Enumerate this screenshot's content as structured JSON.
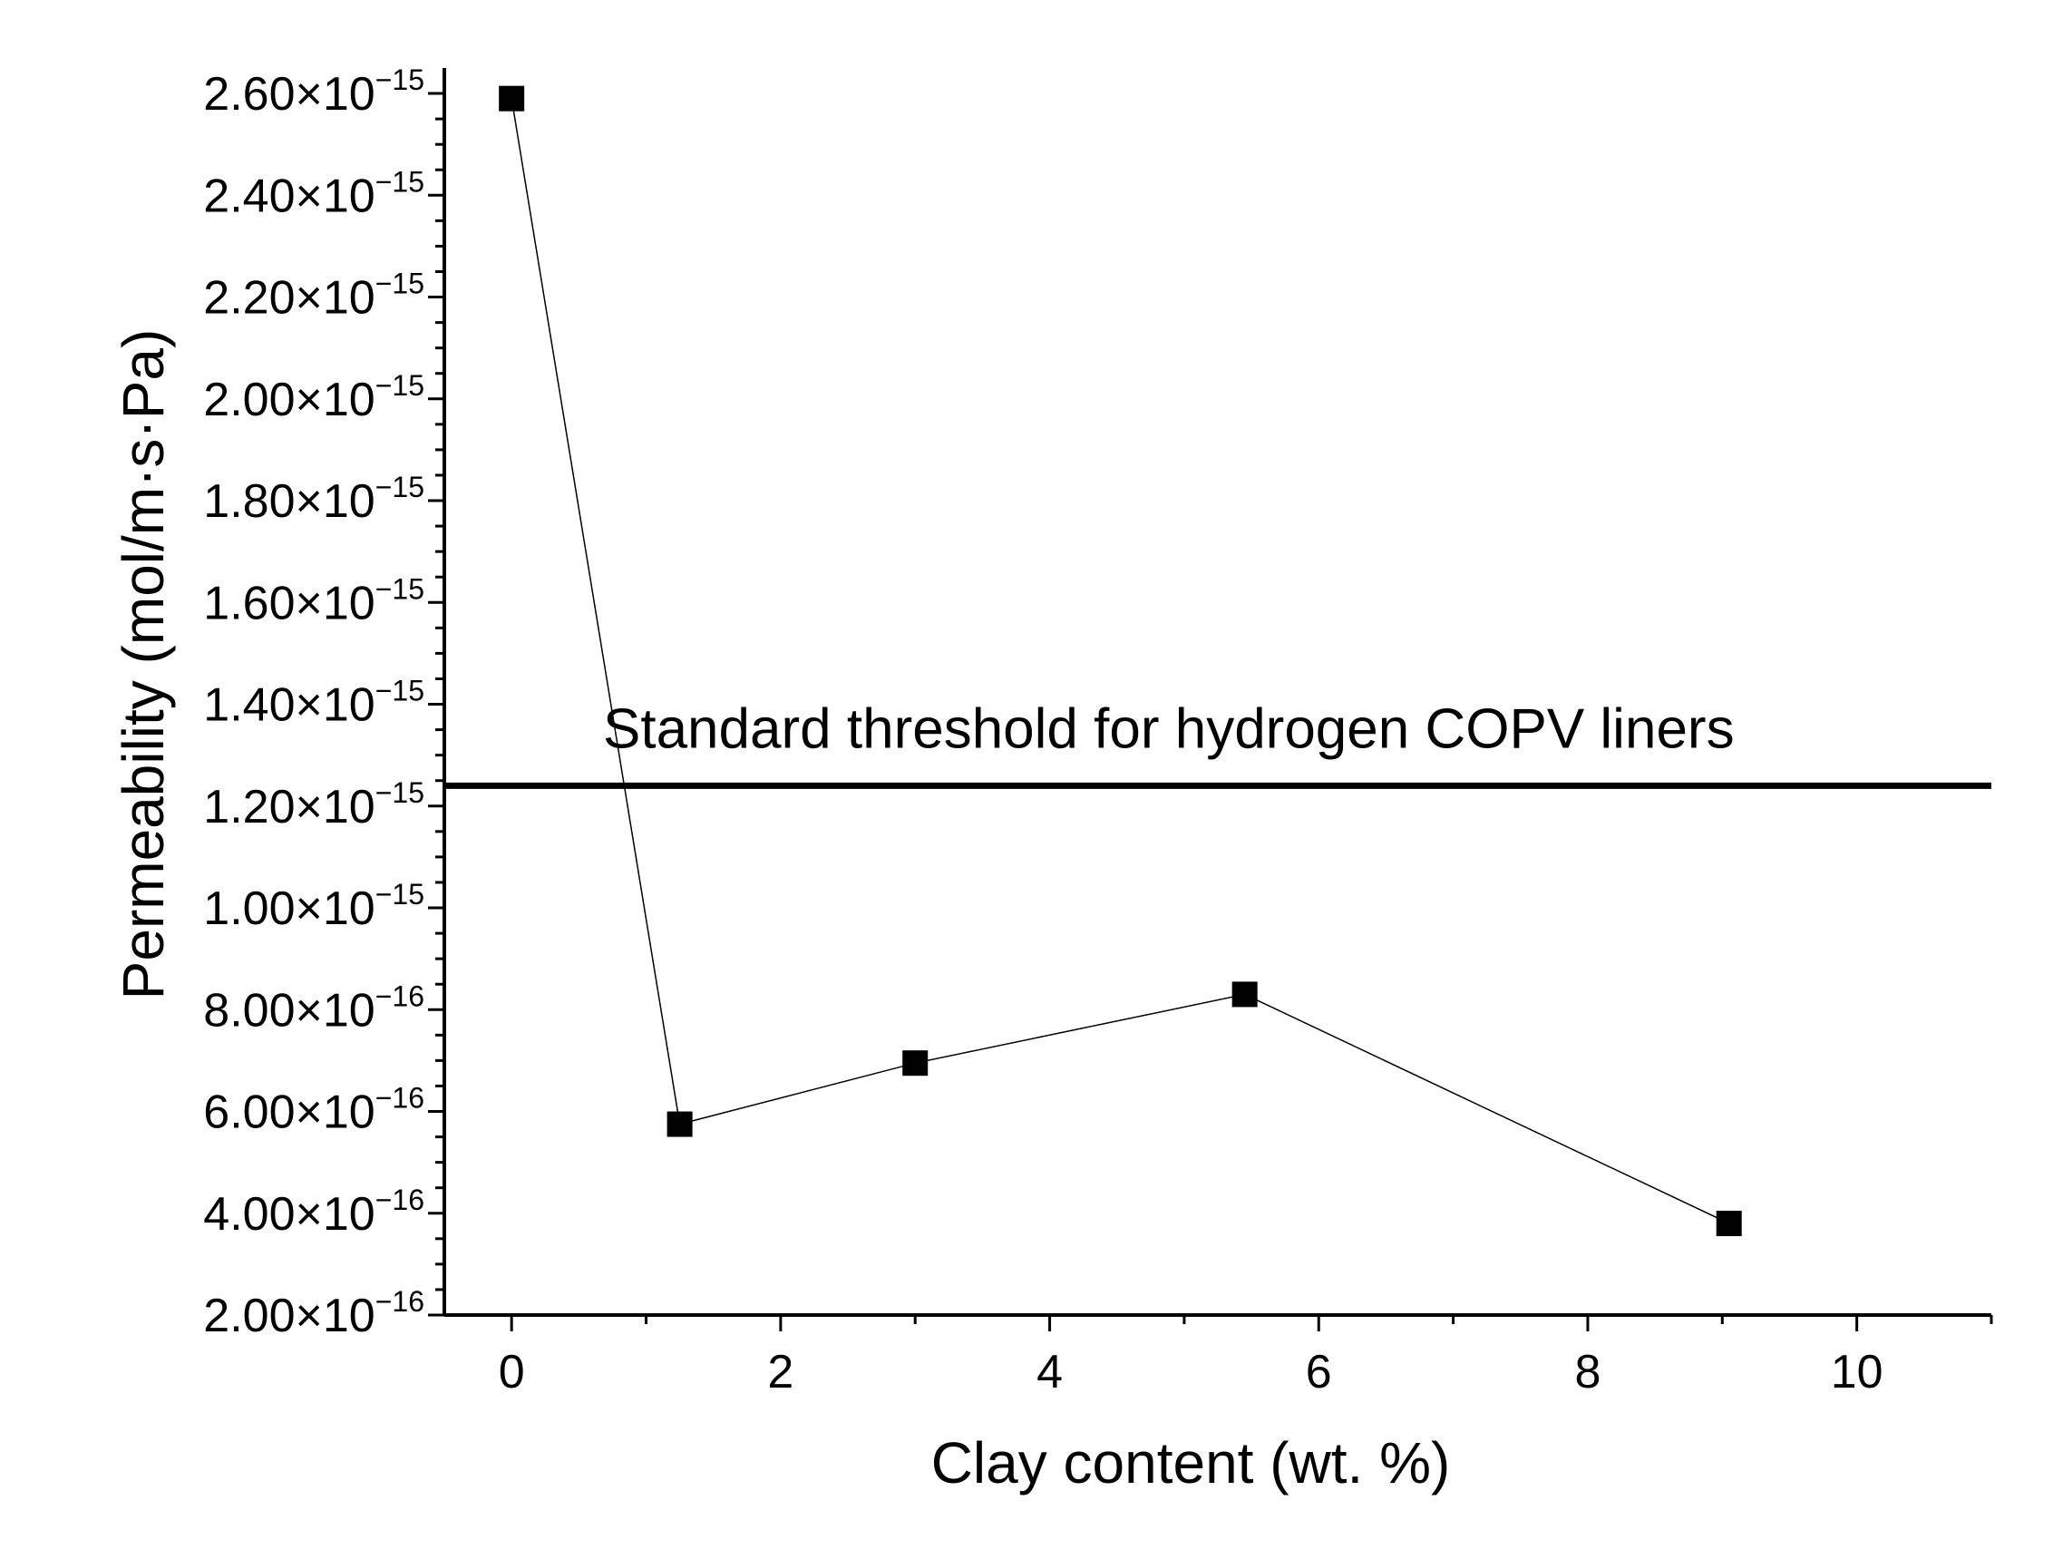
{
  "chart_data": {
    "type": "line",
    "xlabel": "Clay content (wt. %)",
    "ylabel": "Permeability (mol/m·s·Pa)",
    "xlim": [
      -0.5,
      11
    ],
    "ylim": [
      2e-16,
      2.65e-15
    ],
    "x_ticks": [
      0,
      2,
      4,
      6,
      8,
      10
    ],
    "x_tick_labels": [
      "0",
      "2",
      "4",
      "6",
      "8",
      "10"
    ],
    "y_ticks": [
      {
        "value": 2e-16,
        "mantissa": "2.00×10",
        "exponent": "−16"
      },
      {
        "value": 4e-16,
        "mantissa": "4.00×10",
        "exponent": "−16"
      },
      {
        "value": 6e-16,
        "mantissa": "6.00×10",
        "exponent": "−16"
      },
      {
        "value": 8e-16,
        "mantissa": "8.00×10",
        "exponent": "−16"
      },
      {
        "value": 1e-15,
        "mantissa": "1.00×10",
        "exponent": "−15"
      },
      {
        "value": 1.2e-15,
        "mantissa": "1.20×10",
        "exponent": "−15"
      },
      {
        "value": 1.4e-15,
        "mantissa": "1.40×10",
        "exponent": "−15"
      },
      {
        "value": 1.6e-15,
        "mantissa": "1.60×10",
        "exponent": "−15"
      },
      {
        "value": 1.8e-15,
        "mantissa": "1.80×10",
        "exponent": "−15"
      },
      {
        "value": 2e-15,
        "mantissa": "2.00×10",
        "exponent": "−15"
      },
      {
        "value": 2.2e-15,
        "mantissa": "2.20×10",
        "exponent": "−15"
      },
      {
        "value": 2.4e-15,
        "mantissa": "2.40×10",
        "exponent": "−15"
      },
      {
        "value": 2.6e-15,
        "mantissa": "2.60×10",
        "exponent": "−15"
      }
    ],
    "series": [
      {
        "marker": "square",
        "color": "#000000",
        "x": [
          0,
          1.25,
          3.0,
          5.45,
          9.05
        ],
        "y": [
          2.59e-15,
          5.75e-16,
          6.95e-16,
          8.3e-16,
          3.8e-16
        ]
      }
    ],
    "reference_lines": [
      {
        "orientation": "horizontal",
        "y": 1.24e-15,
        "label": "Standard threshold for hydrogen COPV liners"
      }
    ],
    "grid": false,
    "legend": "none"
  }
}
